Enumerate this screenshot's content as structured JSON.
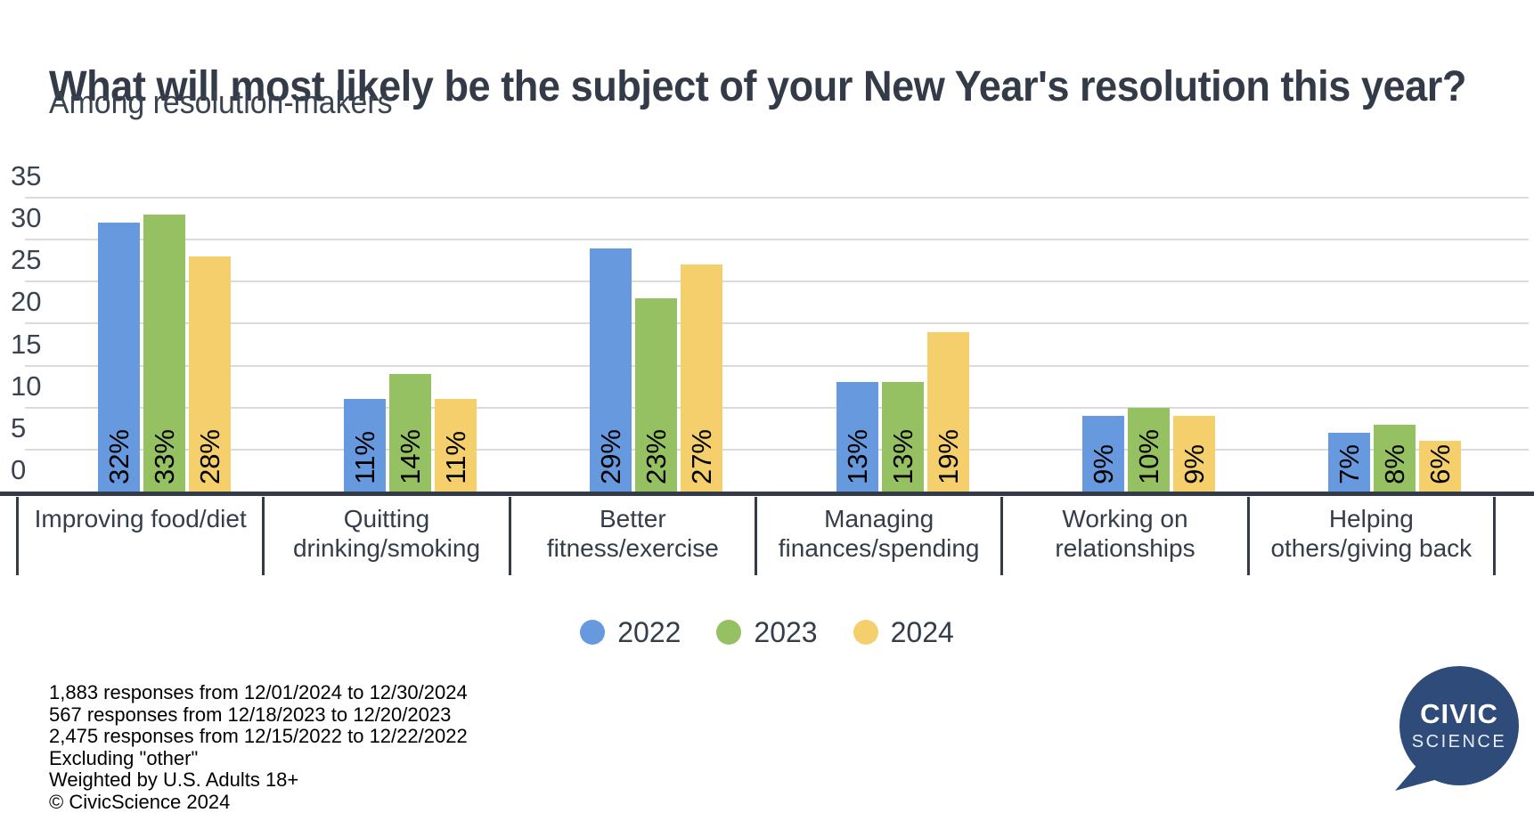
{
  "header": {
    "title": "What will most likely be the subject of your New Year's resolution this year?",
    "subtitle": "Among resolution-makers"
  },
  "chart_data": {
    "type": "bar",
    "title": "What will most likely be the subject of your New Year's resolution this year?",
    "subtitle": "Among resolution-makers",
    "categories": [
      "Improving food/diet",
      "Quitting drinking/smoking",
      "Better fitness/exercise",
      "Managing finances/spending",
      "Working on relationships",
      "Helping others/giving back"
    ],
    "series": [
      {
        "name": "2022",
        "color": "#6799DF",
        "values": [
          32,
          11,
          29,
          13,
          9,
          7
        ]
      },
      {
        "name": "2023",
        "color": "#95C163",
        "values": [
          33,
          14,
          23,
          13,
          10,
          8
        ]
      },
      {
        "name": "2024",
        "color": "#F4CF6B",
        "values": [
          28,
          11,
          27,
          19,
          9,
          6
        ]
      }
    ],
    "value_suffix": "%",
    "xlabel": "",
    "ylabel": "",
    "y_ticks": [
      0,
      5,
      10,
      15,
      20,
      25,
      30,
      35
    ],
    "ylim": [
      0,
      35
    ],
    "grid": true,
    "legend_position": "bottom"
  },
  "footnotes": [
    "1,883 responses from 12/01/2024 to 12/30/2024",
    "567 responses from 12/18/2023 to 12/20/2023",
    "2,475 responses from 12/15/2022 to 12/22/2022",
    "Excluding \"other\"",
    "Weighted by U.S. Adults 18+",
    "© CivicScience 2024"
  ],
  "logo": {
    "line1": "CIVIC",
    "line2": "SCIENCE",
    "color": "#2E4B7A"
  }
}
